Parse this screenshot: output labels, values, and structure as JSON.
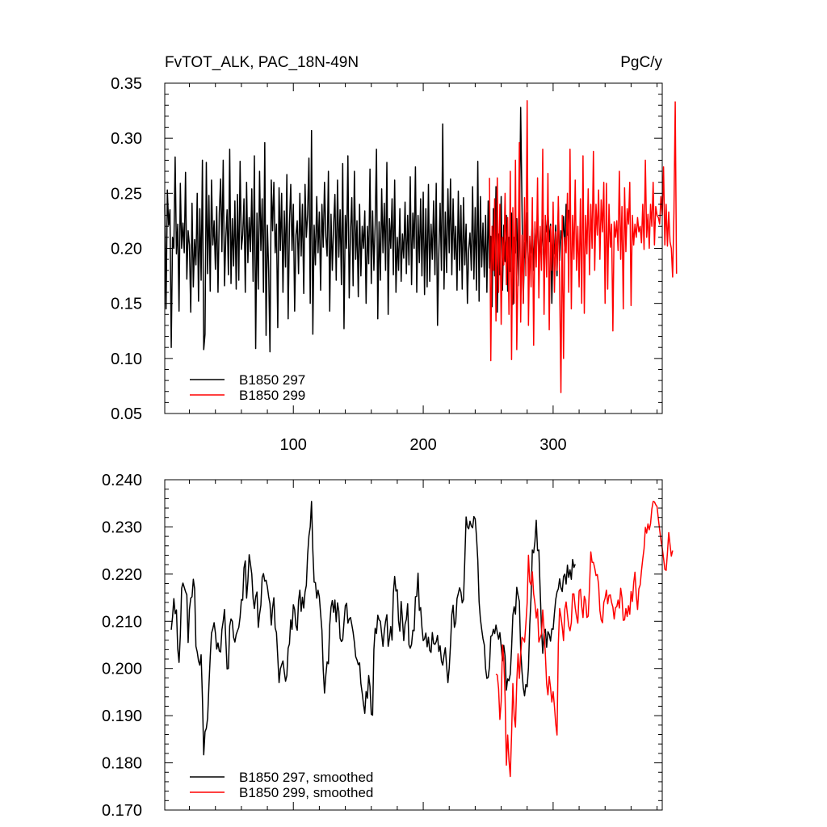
{
  "header": {
    "title": "FvTOT_ALK, PAC_18N-49N",
    "units": "PgC/y"
  },
  "chart_data": [
    {
      "type": "line",
      "panel": "raw",
      "xlim": [
        1,
        384
      ],
      "ylim": [
        0.05,
        0.35
      ],
      "x_ticks": [
        100,
        200,
        300
      ],
      "x_tick_labels": [
        "100",
        "200",
        "300"
      ],
      "y_ticks": [
        0.05,
        0.1,
        0.15,
        0.2,
        0.25,
        0.3,
        0.35
      ],
      "y_tick_labels": [
        "0.05",
        "0.10",
        "0.15",
        "0.20",
        "0.25",
        "0.30",
        "0.35"
      ],
      "legend_position": "bottom-left",
      "series": [
        {
          "name": "B1850 297",
          "color": "#000000",
          "x_start": 1,
          "values": [
            0.24,
            0.145,
            0.253,
            0.221,
            0.235,
            0.11,
            0.21,
            0.2,
            0.283,
            0.195,
            0.222,
            0.143,
            0.259,
            0.2,
            0.223,
            0.196,
            0.269,
            0.172,
            0.216,
            0.203,
            0.142,
            0.241,
            0.165,
            0.208,
            0.185,
            0.25,
            0.152,
            0.236,
            0.171,
            0.28,
            0.108,
            0.122,
            0.278,
            0.177,
            0.248,
            0.161,
            0.262,
            0.203,
            0.225,
            0.181,
            0.238,
            0.16,
            0.232,
            0.263,
            0.197,
            0.28,
            0.166,
            0.21,
            0.235,
            0.176,
            0.29,
            0.168,
            0.227,
            0.184,
            0.243,
            0.163,
            0.249,
            0.171,
            0.279,
            0.199,
            0.212,
            0.245,
            0.16,
            0.26,
            0.187,
            0.228,
            0.197,
            0.254,
            0.17,
            0.284,
            0.109,
            0.232,
            0.163,
            0.27,
            0.198,
            0.245,
            0.16,
            0.296,
            0.121,
            0.221,
            0.18,
            0.106,
            0.262,
            0.216,
            0.26,
            0.196,
            0.222,
            0.128,
            0.255,
            0.198,
            0.25,
            0.16,
            0.234,
            0.183,
            0.267,
            0.136,
            0.222,
            0.258,
            0.198,
            0.24,
            0.143,
            0.212,
            0.225,
            0.177,
            0.25,
            0.193,
            0.24,
            0.159,
            0.258,
            0.21,
            0.231,
            0.282,
            0.15,
            0.307,
            0.122,
            0.221,
            0.185,
            0.247,
            0.196,
            0.233,
            0.162,
            0.24,
            0.201,
            0.26,
            0.211,
            0.193,
            0.27,
            0.143,
            0.231,
            0.18,
            0.221,
            0.249,
            0.171,
            0.262,
            0.192,
            0.235,
            0.167,
            0.277,
            0.127,
            0.23,
            0.2,
            0.284,
            0.155,
            0.214,
            0.246,
            0.166,
            0.27,
            0.19,
            0.225,
            0.156,
            0.24,
            0.175,
            0.22,
            0.2,
            0.234,
            0.15,
            0.22,
            0.186,
            0.272,
            0.168,
            0.234,
            0.18,
            0.222,
            0.29,
            0.136,
            0.224,
            0.171,
            0.254,
            0.196,
            0.241,
            0.18,
            0.278,
            0.14,
            0.227,
            0.2,
            0.245,
            0.176,
            0.262,
            0.16,
            0.21,
            0.18,
            0.236,
            0.17,
            0.213,
            0.191,
            0.242,
            0.177,
            0.23,
            0.185,
            0.265,
            0.167,
            0.232,
            0.2,
            0.274,
            0.16,
            0.23,
            0.187,
            0.245,
            0.175,
            0.251,
            0.158,
            0.236,
            0.165,
            0.258,
            0.17,
            0.222,
            0.19,
            0.243,
            0.176,
            0.259,
            0.13,
            0.195,
            0.241,
            0.18,
            0.313,
            0.163,
            0.233,
            0.178,
            0.254,
            0.196,
            0.263,
            0.176,
            0.245,
            0.19,
            0.22,
            0.162,
            0.252,
            0.18,
            0.239,
            0.163,
            0.246,
            0.185,
            0.222,
            0.15,
            0.199,
            0.214,
            0.18,
            0.256,
            0.172,
            0.237,
            0.162,
            0.279,
            0.152,
            0.247,
            0.183,
            0.223,
            0.174,
            0.23,
            0.16,
            0.243,
            0.182,
            0.211,
            0.147,
            0.236,
            0.175,
            0.256,
            0.142,
            0.213,
            0.176,
            0.247,
            0.162,
            0.221,
            0.188,
            0.23,
            0.161,
            0.21,
            0.179,
            0.232,
            0.149,
            0.21,
            0.196,
            0.227,
            0.166,
            0.211,
            0.328,
            0.24,
            0.15,
            0.205,
            0.186,
            0.232,
            0.171,
            0.201,
            0.196,
            0.226,
            0.18,
            0.218,
            0.196,
            0.237,
            0.187,
            0.21,
            0.194,
            0.226,
            0.17,
            0.222,
            0.215,
            0.236,
            0.206,
            0.222,
            0.15,
            0.208,
            0.195,
            0.221,
            0.175,
            0.238,
            0.189,
            0.216,
            0.207,
            0.229,
            0.198,
            0.24,
            0.212,
            0.235
          ]
        },
        {
          "name": "B1850 299",
          "color": "#ff0000",
          "x_start": 251,
          "values": [
            0.264,
            0.098,
            0.22,
            0.18,
            0.245,
            0.134,
            0.264,
            0.16,
            0.24,
            0.131,
            0.21,
            0.185,
            0.25,
            0.167,
            0.228,
            0.14,
            0.27,
            0.099,
            0.237,
            0.15,
            0.28,
            0.108,
            0.183,
            0.296,
            0.133,
            0.212,
            0.15,
            0.246,
            0.175,
            0.334,
            0.13,
            0.211,
            0.165,
            0.246,
            0.112,
            0.224,
            0.183,
            0.264,
            0.155,
            0.22,
            0.18,
            0.29,
            0.14,
            0.23,
            0.174,
            0.268,
            0.126,
            0.22,
            0.18,
            0.242,
            0.16,
            0.215,
            0.18,
            0.247,
            0.17,
            0.069,
            0.23,
            0.1,
            0.21,
            0.196,
            0.25,
            0.16,
            0.29,
            0.145,
            0.23,
            0.19,
            0.262,
            0.18,
            0.22,
            0.165,
            0.245,
            0.15,
            0.284,
            0.141,
            0.23,
            0.195,
            0.254,
            0.176,
            0.24,
            0.2,
            0.288,
            0.18,
            0.24,
            0.212,
            0.253,
            0.19,
            0.244,
            0.215,
            0.26,
            0.15,
            0.259,
            0.163,
            0.24,
            0.201,
            0.222,
            0.125,
            0.224,
            0.21,
            0.225,
            0.198,
            0.27,
            0.19,
            0.238,
            0.145,
            0.255,
            0.197,
            0.236,
            0.222,
            0.26,
            0.148,
            0.23,
            0.203,
            0.222,
            0.21,
            0.228,
            0.215,
            0.22,
            0.205,
            0.24,
            0.199,
            0.28,
            0.21,
            0.231,
            0.2,
            0.24,
            0.22,
            0.26,
            0.203,
            0.238,
            0.23,
            0.228,
            0.222,
            0.247,
            0.23,
            0.274,
            0.203,
            0.24,
            0.202,
            0.233,
            0.206,
            0.2,
            0.174,
            0.232,
            0.333,
            0.177
          ]
        }
      ]
    },
    {
      "type": "line",
      "panel": "smoothed",
      "xlim": [
        1,
        384
      ],
      "ylim": [
        0.17,
        0.24
      ],
      "x_ticks": [
        100,
        200,
        300
      ],
      "y_ticks": [
        0.17,
        0.18,
        0.19,
        0.2,
        0.21,
        0.22,
        0.23,
        0.24
      ],
      "y_tick_labels": [
        "0.170",
        "0.180",
        "0.190",
        "0.200",
        "0.210",
        "0.220",
        "0.230",
        "0.240"
      ],
      "legend_position": "bottom-left",
      "series": [
        {
          "name": "B1850 297, smoothed",
          "color": "#000000",
          "x_start": 6,
          "values": [
            0.2082,
            0.2109,
            0.2148,
            0.2116,
            0.2124,
            0.2042,
            0.2013,
            0.2071,
            0.217,
            0.2181,
            0.2172,
            0.2163,
            0.2156,
            0.2055,
            0.2125,
            0.2149,
            0.2152,
            0.2189,
            0.2169,
            0.2047,
            0.2035,
            0.2016,
            0.2007,
            0.2029,
            0.1938,
            0.1817,
            0.1866,
            0.1873,
            0.1895,
            0.1963,
            0.2024,
            0.2075,
            0.2084,
            0.2097,
            0.2075,
            0.2041,
            0.2054,
            0.2037,
            0.2035,
            0.2082,
            0.21,
            0.2125,
            0.2061,
            0.1999,
            0.2,
            0.209,
            0.2105,
            0.21,
            0.2066,
            0.2056,
            0.2072,
            0.208,
            0.2087,
            0.2109,
            0.2146,
            0.2145,
            0.2213,
            0.2228,
            0.2149,
            0.2185,
            0.2241,
            0.2221,
            0.22,
            0.2149,
            0.2127,
            0.2152,
            0.2162,
            0.2087,
            0.2115,
            0.2134,
            0.2193,
            0.2201,
            0.2185,
            0.2187,
            0.2173,
            0.2152,
            0.2137,
            0.2092,
            0.2128,
            0.215,
            0.2086,
            0.2076,
            0.2024,
            0.197,
            0.1999,
            0.2008,
            0.2016,
            0.1993,
            0.1973,
            0.1985,
            0.2043,
            0.2052,
            0.2103,
            0.2083,
            0.2135,
            0.2125,
            0.2091,
            0.2081,
            0.2143,
            0.2166,
            0.2121,
            0.2151,
            0.2128,
            0.2162,
            0.2176,
            0.2241,
            0.2281,
            0.23,
            0.2354,
            0.225,
            0.2183,
            0.2182,
            0.2149,
            0.2166,
            0.2152,
            0.2116,
            0.2081,
            0.1998,
            0.1948,
            0.1986,
            0.2014,
            0.201,
            0.2092,
            0.213,
            0.2144,
            0.2119,
            0.2145,
            0.2099,
            0.2139,
            0.2121,
            0.2064,
            0.2057,
            0.2061,
            0.2098,
            0.2133,
            0.2138,
            0.2096,
            0.2105,
            0.2108,
            0.2093,
            0.2077,
            0.2055,
            0.2025,
            0.2018,
            0.2008,
            0.2012,
            0.1968,
            0.1948,
            0.1924,
            0.1905,
            0.1951,
            0.1937,
            0.1985,
            0.1962,
            0.1903,
            0.1901,
            0.204,
            0.2085,
            0.2074,
            0.2113,
            0.2103,
            0.21,
            0.2073,
            0.2047,
            0.2079,
            0.21,
            0.2114,
            0.2047,
            0.2065,
            0.2089,
            0.206,
            0.216,
            0.2195,
            0.2164,
            0.2167,
            0.2101,
            0.2079,
            0.2142,
            0.2104,
            0.2059,
            0.2094,
            0.2104,
            0.2137,
            0.205,
            0.2043,
            0.2051,
            0.2081,
            0.208,
            0.2152,
            0.2153,
            0.2202,
            0.2123,
            0.2129,
            0.2087,
            0.2059,
            0.2063,
            0.2075,
            0.2046,
            0.2066,
            0.2038,
            0.2034,
            0.2076,
            0.2053,
            0.2051,
            0.2057,
            0.207,
            0.2036,
            0.2048,
            0.2016,
            0.2007,
            0.2028,
            0.2044,
            0.2005,
            0.197,
            0.2001,
            0.2051,
            0.2114,
            0.2134,
            0.2087,
            0.2098,
            0.2148,
            0.2159,
            0.2171,
            0.2162,
            0.2139,
            0.2146,
            0.2231,
            0.2321,
            0.23,
            0.2296,
            0.2312,
            0.2302,
            0.2298,
            0.2322,
            0.2317,
            0.2279,
            0.223,
            0.2142,
            0.2105,
            0.2083,
            0.2063,
            0.205,
            0.2,
            0.1979,
            0.1981,
            0.2004,
            0.2068,
            0.207,
            0.2083,
            0.2074,
            0.2092,
            0.2076,
            0.2062,
            0.2076,
            0.2047,
            0.2016,
            0.2049,
            0.2026,
            0.1954,
            0.1978,
            0.1974,
            0.1988,
            0.2043,
            0.2113,
            0.2131,
            0.2115,
            0.2172,
            0.2155,
            0.2142,
            0.204,
            0.1994,
            0.196,
            0.1942,
            0.1966,
            0.1961,
            0.2002,
            0.2093,
            0.2151,
            0.2251,
            0.2245,
            0.2269,
            0.2314,
            0.225,
            0.2251,
            0.2167,
            0.2087,
            0.2032,
            0.2074,
            0.2083,
            0.2045,
            0.2078,
            0.2072,
            0.2058,
            0.2084,
            0.2083,
            0.2117,
            0.2146,
            0.2162,
            0.2169,
            0.219,
            0.2171,
            0.2163,
            0.2195,
            0.22,
            0.2179,
            0.2219,
            0.2193,
            0.2209,
            0.2189,
            0.2231,
            0.2214,
            0.2221
          ]
        },
        {
          "name": "B1850 299, smoothed",
          "color": "#ff0000",
          "x_start": 256,
          "values": [
            0.1988,
            0.1986,
            0.1957,
            0.1892,
            0.193,
            0.205,
            0.2021,
            0.194,
            0.1795,
            0.1859,
            0.1806,
            0.1771,
            0.186,
            0.1968,
            0.1898,
            0.1876,
            0.1972,
            0.2031,
            0.1979,
            0.203,
            0.2066,
            0.2063,
            0.2056,
            0.2094,
            0.2139,
            0.224,
            0.2184,
            0.2177,
            0.2205,
            0.2158,
            0.2138,
            0.2107,
            0.2126,
            0.2056,
            0.2065,
            0.2073,
            0.2124,
            0.2082,
            0.2031,
            0.1967,
            0.1944,
            0.1983,
            0.1959,
            0.1929,
            0.1951,
            0.192,
            0.1883,
            0.1859,
            0.2052,
            0.2127,
            0.211,
            0.2088,
            0.2059,
            0.2125,
            0.2141,
            0.2115,
            0.209,
            0.208,
            0.2097,
            0.2158,
            0.2158,
            0.2129,
            0.211,
            0.2096,
            0.2164,
            0.2168,
            0.2132,
            0.2108,
            0.2153,
            0.2144,
            0.2108,
            0.2111,
            0.2172,
            0.2247,
            0.2225,
            0.2225,
            0.2213,
            0.2197,
            0.2199,
            0.2178,
            0.2123,
            0.2103,
            0.2097,
            0.214,
            0.2149,
            0.2166,
            0.2137,
            0.2155,
            0.2156,
            0.214,
            0.213,
            0.2105,
            0.2129,
            0.2131,
            0.2145,
            0.2128,
            0.217,
            0.215,
            0.2102,
            0.2103,
            0.2127,
            0.211,
            0.2133,
            0.2115,
            0.2163,
            0.2142,
            0.2181,
            0.2204,
            0.2155,
            0.2125,
            0.2169,
            0.2177,
            0.2207,
            0.2232,
            0.2254,
            0.2299,
            0.2287,
            0.2306,
            0.2294,
            0.2307,
            0.2338,
            0.2354,
            0.2353,
            0.2347,
            0.2343,
            0.2317,
            0.2294,
            0.2272,
            0.2255,
            0.2234,
            0.221,
            0.2208,
            0.2245,
            0.2288,
            0.2262,
            0.2238,
            0.225
          ]
        }
      ]
    }
  ]
}
